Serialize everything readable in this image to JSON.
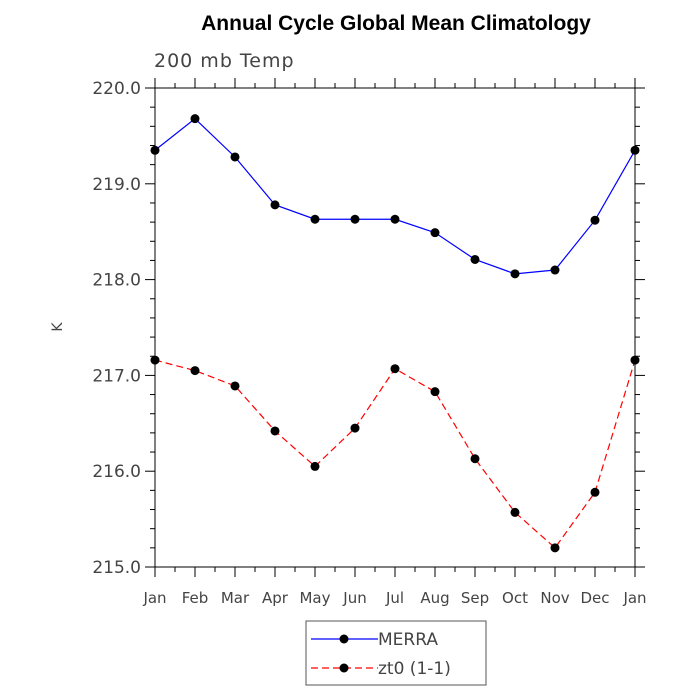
{
  "chart_data": {
    "type": "line",
    "title": "Annual Cycle Global Mean Climatology",
    "subtitle": "200 mb Temp",
    "xlabel": "",
    "ylabel": "K",
    "ylim": [
      215.0,
      220.0
    ],
    "yticks": [
      "215.0",
      "216.0",
      "217.0",
      "218.0",
      "219.0",
      "220.0"
    ],
    "categories": [
      "Jan",
      "Feb",
      "Mar",
      "Apr",
      "May",
      "Jun",
      "Jul",
      "Aug",
      "Sep",
      "Oct",
      "Nov",
      "Dec",
      "Jan"
    ],
    "grid": false,
    "legend_position": "bottom",
    "series": [
      {
        "name": "MERRA",
        "color": "#0000ff",
        "dash": "solid",
        "values": [
          219.35,
          219.68,
          219.28,
          218.78,
          218.63,
          218.63,
          218.63,
          218.49,
          218.21,
          218.06,
          218.1,
          218.62,
          219.35
        ]
      },
      {
        "name": "zt0 (1-1)",
        "color": "#ff0000",
        "dash": "dashed",
        "values": [
          217.16,
          217.05,
          216.89,
          216.42,
          216.05,
          216.45,
          217.07,
          216.83,
          216.13,
          215.57,
          215.2,
          215.78,
          217.16
        ]
      }
    ]
  }
}
